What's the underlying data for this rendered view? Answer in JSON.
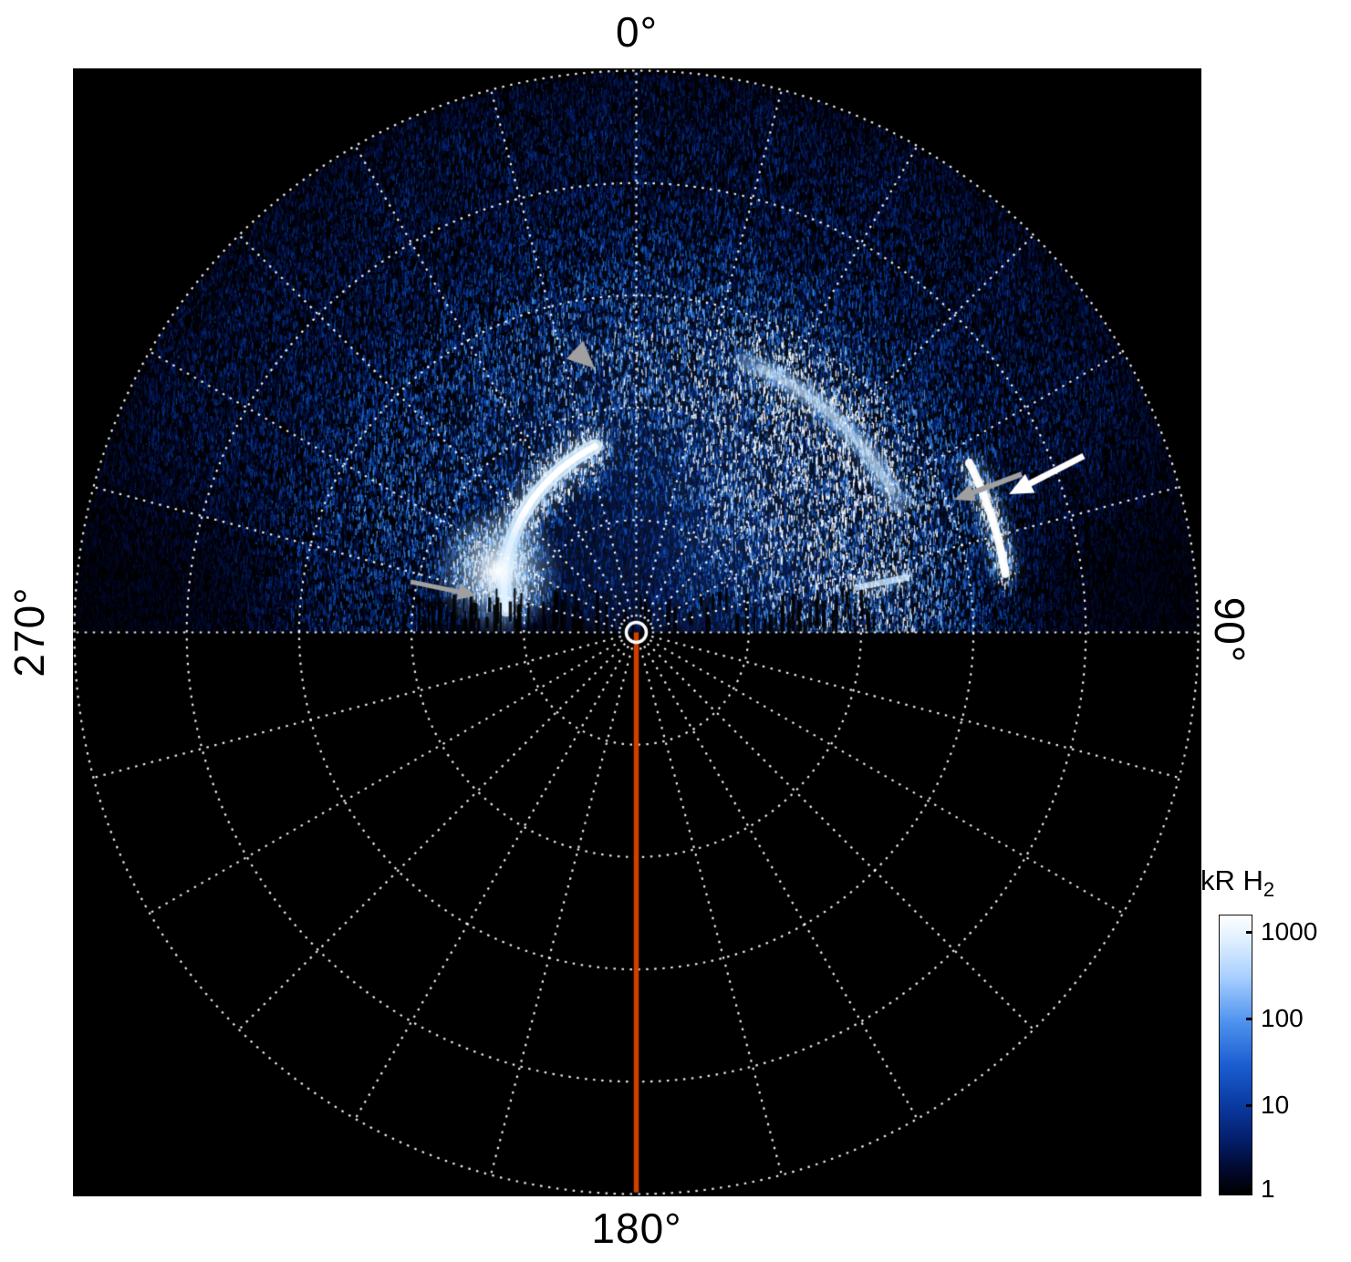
{
  "figure": {
    "background": "#ffffff",
    "plot_background": "#000000"
  },
  "labels": {
    "top": "0°",
    "right": "90°",
    "bottom": "180°",
    "left": "270°"
  },
  "chart_data": {
    "type": "heatmap",
    "projection": "polar",
    "description": "Polar-projection map of H2 auroral emission; speckled blue emission fills the 270°-0°-90° upper hemisphere, lower hemisphere has no data",
    "angular_tick_labels": [
      "0°",
      "90°",
      "180°",
      "270°"
    ],
    "grid": {
      "radial_circles": 5,
      "spoke_step_deg": 15,
      "line_style": "dotted",
      "color": "#ffffff"
    },
    "meridian_line": {
      "angle_deg": 180,
      "color": "#d04000"
    },
    "center_marker": {
      "shape": "open-circle",
      "color": "#ffffff"
    },
    "colorbar": {
      "title_main": "kR H",
      "title_sub": "2",
      "scale": "log",
      "unit": "kR",
      "ticks": [
        "1000",
        "100",
        "10",
        "1"
      ],
      "gradient": [
        "#ffffff 0%",
        "#e2f1ff 8%",
        "#a9cfff 22%",
        "#4f93ee 38%",
        "#1a5cd0 54%",
        "#0a3aa0 68%",
        "#041f6e 80%",
        "#010a33 90%",
        "#000000 100%"
      ]
    },
    "palette": [
      [
        0.0,
        "#01010a"
      ],
      [
        0.18,
        "#05185c"
      ],
      [
        0.38,
        "#0a49b4"
      ],
      [
        0.56,
        "#2d7de2"
      ],
      [
        0.72,
        "#6fb0f5"
      ],
      [
        0.86,
        "#c3e0ff"
      ],
      [
        1.0,
        "#ffffff"
      ]
    ],
    "emission_features": [
      {
        "name": "main-auroral-arc",
        "azimuth_deg": [
          -80,
          -12
        ],
        "radius_frac": [
          0.235,
          0.34
        ],
        "peak_kR": 1000
      },
      {
        "name": "bright-spot",
        "azimuth_deg": -66,
        "radius_frac": 0.27,
        "peak_kR": 1000
      },
      {
        "name": "diffuse-arc-east",
        "azimuth_deg": [
          22,
          64
        ],
        "radius_frac": 0.52,
        "peak_kR": 200
      },
      {
        "name": "narrow-arc-east",
        "azimuth_deg": [
          63,
          82
        ],
        "radius_frac": 0.665,
        "peak_kR": 800
      },
      {
        "name": "east-streak",
        "azimuth_deg": 78.5,
        "radius_frac": 0.445,
        "peak_kR": 300
      },
      {
        "name": "background-speckle",
        "kR_range": [
          1,
          100
        ]
      }
    ],
    "annotations": [
      {
        "name": "grey-arrowhead",
        "color": "#a0a0a0",
        "from": [
          600,
          356
        ],
        "to": [
          652,
          404
        ],
        "head": 30,
        "lw": 0
      },
      {
        "name": "grey-arrow-west",
        "color": "#a0a0a0",
        "from": [
          450,
          638
        ],
        "to": [
          522,
          653
        ],
        "head": 20,
        "lw": 5
      },
      {
        "name": "grey-arrow-east",
        "color": "#a0a0a0",
        "from": [
          1120,
          520
        ],
        "to": [
          1046,
          548
        ],
        "head": 22,
        "lw": 6
      },
      {
        "name": "white-arrow-east",
        "color": "#ffffff",
        "from": [
          1188,
          500
        ],
        "to": [
          1106,
          542
        ],
        "head": 26,
        "lw": 7
      }
    ]
  }
}
